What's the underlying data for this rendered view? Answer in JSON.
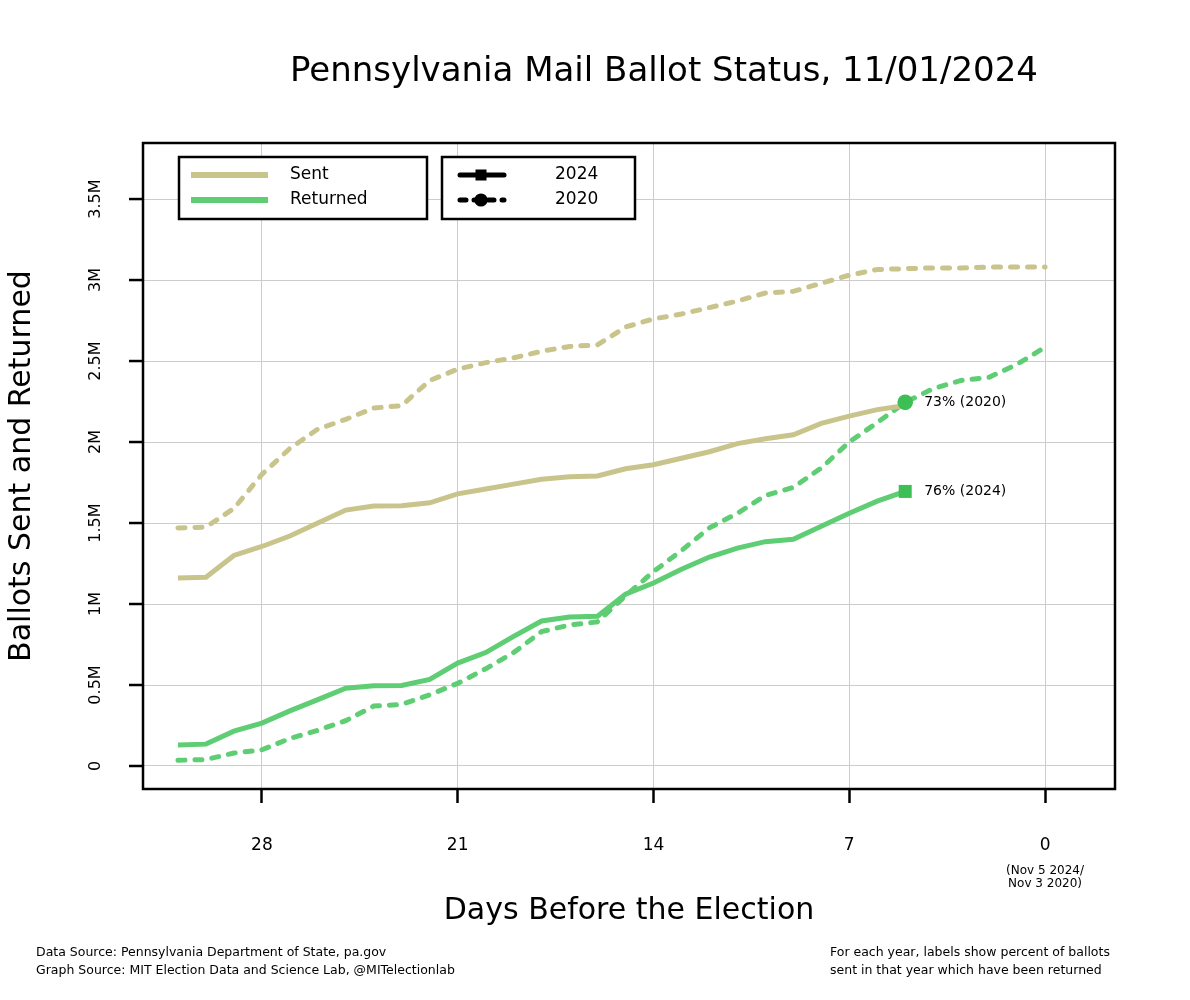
{
  "chart_data": {
    "type": "line",
    "title": "Pennsylvania Mail Ballot Status, 11/01/2024",
    "x_label": "Days Before the Election",
    "y_label": "Ballots Sent and Returned",
    "x": [
      31,
      30,
      29,
      28,
      27,
      26,
      25,
      24,
      23,
      22,
      21,
      20,
      19,
      18,
      17,
      16,
      15,
      14,
      13,
      12,
      11,
      10,
      9,
      8,
      7,
      6,
      5,
      4,
      3,
      2,
      1,
      0
    ],
    "xlim": [
      32.25,
      -2.5
    ],
    "xticks": [
      28,
      21,
      14,
      7,
      0
    ],
    "x_tick_note": {
      "value": 0,
      "lines": [
        "(Nov 5 2024/",
        "Nov 3 2020)"
      ]
    },
    "ylim": [
      -142000,
      3846000
    ],
    "yticks": [
      0,
      {
        "value": 500000,
        "label": "0.5M"
      },
      {
        "value": 1000000,
        "label": "1M"
      },
      {
        "value": 1500000,
        "label": "1.5M"
      },
      {
        "value": 2000000,
        "label": "2M"
      },
      {
        "value": 2500000,
        "label": "2.5M"
      },
      {
        "value": 3000000,
        "label": "3M"
      },
      {
        "value": 3500000,
        "label": "3.5M"
      }
    ],
    "grid": true,
    "series": [
      {
        "name": "Sent",
        "year": "2024",
        "color": "#c9c48c",
        "line_style": "solid",
        "marker": "square",
        "values": [
          1160000,
          1165000,
          1300000,
          1355000,
          1420000,
          1500000,
          1580000,
          1605000,
          1607000,
          1625000,
          1680000,
          1710000,
          1740000,
          1770000,
          1785000,
          1790000,
          1835000,
          1860000,
          1900000,
          1940000,
          1990000,
          2020000,
          2045000,
          2115000,
          2160000,
          2200000,
          2225000,
          null,
          null,
          null,
          null,
          null
        ]
      },
      {
        "name": "Returned",
        "year": "2024",
        "color": "#5fcd74",
        "line_style": "solid",
        "marker": "square",
        "values": [
          130000,
          135000,
          215000,
          265000,
          340000,
          410000,
          480000,
          495000,
          497000,
          535000,
          635000,
          700000,
          800000,
          895000,
          920000,
          925000,
          1060000,
          1130000,
          1215000,
          1290000,
          1345000,
          1385000,
          1400000,
          1480000,
          1560000,
          1635000,
          1695000,
          null,
          null,
          null,
          null,
          null
        ]
      },
      {
        "name": "Sent",
        "year": "2020",
        "color": "#c9c48c",
        "line_style": "dashed",
        "marker": "circle",
        "values": [
          1470000,
          1475000,
          1590000,
          1800000,
          1960000,
          2080000,
          2140000,
          2210000,
          2225000,
          2380000,
          2450000,
          2490000,
          2520000,
          2560000,
          2590000,
          2600000,
          2710000,
          2760000,
          2790000,
          2830000,
          2870000,
          2920000,
          2930000,
          2980000,
          3030000,
          3065000,
          3070000,
          3075000,
          3075000,
          3080000,
          3080000,
          3080000
        ]
      },
      {
        "name": "Returned",
        "year": "2020",
        "color": "#5fcd74",
        "line_style": "dashed",
        "marker": "circle",
        "values": [
          35000,
          40000,
          80000,
          100000,
          170000,
          220000,
          280000,
          370000,
          380000,
          440000,
          510000,
          600000,
          700000,
          830000,
          870000,
          890000,
          1050000,
          1200000,
          1330000,
          1470000,
          1560000,
          1670000,
          1720000,
          1840000,
          2000000,
          2120000,
          2245000,
          2330000,
          2380000,
          2400000,
          2480000,
          2585000
        ]
      }
    ],
    "annotations": [
      {
        "text": "73% (2020)",
        "x": 5,
        "y": 2245000,
        "marker": "circle",
        "color": "#3dbf55"
      },
      {
        "text": "76% (2024)",
        "x": 5,
        "y": 1695000,
        "marker": "square",
        "color": "#3dbf55"
      }
    ],
    "footer": {
      "left": [
        "Data Source: Pennsylvania Department of State, pa.gov",
        "Graph Source: MIT Election Data and Science Lab, @MITelectionlab"
      ],
      "right": [
        "For each year, labels show percent of ballots",
        "sent in that year which have been returned"
      ]
    }
  }
}
